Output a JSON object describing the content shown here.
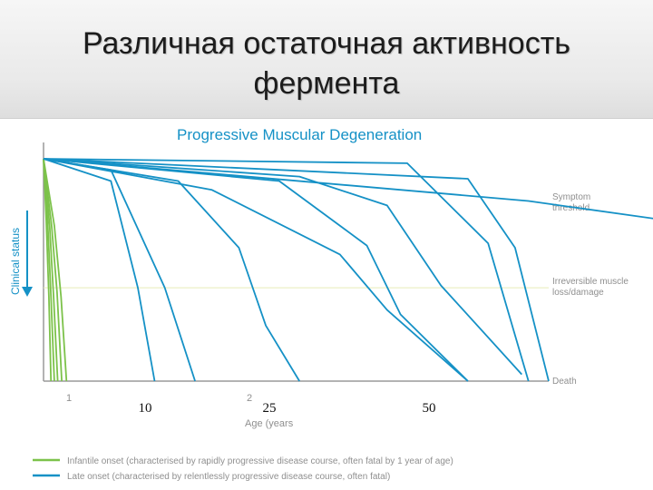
{
  "slide": {
    "title_line1": "Различная остаточная активность",
    "title_line2": "фермента"
  },
  "colors": {
    "late_onset": "#1591c6",
    "infantile_onset": "#7cc24a",
    "axis": "#9a9a9a",
    "chart_title": "#1591c6",
    "annotation": "#8f8f8f",
    "threshold_line": "#e6ecb9"
  },
  "chart_data": {
    "type": "line",
    "title": "Progressive Muscular Degeneration",
    "xlabel": "Age (years",
    "ylabel": "Clinical status",
    "x_tick_labels": [
      {
        "x": 1,
        "label": "1"
      },
      {
        "x": 2,
        "label": "2"
      }
    ],
    "x_overlay_labels": [
      {
        "x": 10,
        "label": "10"
      },
      {
        "x": 25,
        "label": "25"
      },
      {
        "x": 50,
        "label": "50"
      }
    ],
    "xlim": [
      0,
      75
    ],
    "ylim": [
      0,
      100
    ],
    "y_axis_direction": "down (worsening)",
    "grid": false,
    "levels": [
      {
        "label": "Symptom threshold",
        "y": 80
      },
      {
        "label": "Irreversible muscle loss/damage",
        "y": 42
      },
      {
        "label": "Death",
        "y": 0
      }
    ],
    "legend": {
      "placement": "bottom",
      "entries": [
        {
          "label": "Infantile onset (characterised by rapidly progressive disease course, often fatal by 1 year of age)",
          "color": "#7cc24a"
        },
        {
          "label": "Late onset (characterised by relentlessly progressive disease course, often fatal)",
          "color": "#1591c6"
        }
      ]
    },
    "series": [
      {
        "group": "infantile",
        "points": [
          [
            0,
            100
          ],
          [
            0.4,
            72
          ],
          [
            0.8,
            38
          ],
          [
            1.1,
            0
          ]
        ]
      },
      {
        "group": "infantile",
        "points": [
          [
            0,
            100
          ],
          [
            0.6,
            72
          ],
          [
            1.1,
            38
          ],
          [
            1.6,
            0
          ]
        ]
      },
      {
        "group": "infantile",
        "points": [
          [
            0,
            100
          ],
          [
            0.9,
            70
          ],
          [
            1.5,
            38
          ],
          [
            2.1,
            0
          ]
        ]
      },
      {
        "group": "infantile",
        "points": [
          [
            0,
            100
          ],
          [
            1.2,
            70
          ],
          [
            2.0,
            40
          ],
          [
            2.7,
            0
          ]
        ]
      },
      {
        "group": "infantile",
        "points": [
          [
            0,
            100
          ],
          [
            1.6,
            70
          ],
          [
            2.6,
            38
          ],
          [
            3.4,
            0
          ]
        ]
      },
      {
        "group": "late",
        "points": [
          [
            0,
            100
          ],
          [
            10,
            90
          ],
          [
            14,
            42
          ],
          [
            16.5,
            0
          ]
        ]
      },
      {
        "group": "late",
        "points": [
          [
            0,
            100
          ],
          [
            10,
            95
          ],
          [
            18,
            42
          ],
          [
            22.5,
            0
          ]
        ]
      },
      {
        "group": "late",
        "points": [
          [
            0,
            100
          ],
          [
            20,
            90
          ],
          [
            29,
            60
          ],
          [
            33,
            25
          ],
          [
            38,
            0
          ]
        ]
      },
      {
        "group": "late",
        "points": [
          [
            0,
            100
          ],
          [
            25,
            86
          ],
          [
            44,
            57
          ],
          [
            51,
            32
          ],
          [
            63,
            0
          ]
        ]
      },
      {
        "group": "late",
        "points": [
          [
            0,
            100
          ],
          [
            35,
            90
          ],
          [
            48,
            61
          ],
          [
            53,
            30
          ],
          [
            63,
            0
          ]
        ]
      },
      {
        "group": "late",
        "points": [
          [
            0,
            100
          ],
          [
            38,
            92
          ],
          [
            51,
            79
          ],
          [
            59,
            43
          ],
          [
            71,
            3
          ]
        ]
      },
      {
        "group": "late",
        "points": [
          [
            0,
            100
          ],
          [
            54,
            98
          ],
          [
            66,
            62
          ],
          [
            72,
            0
          ]
        ]
      },
      {
        "group": "late",
        "points": [
          [
            0,
            100
          ],
          [
            63,
            91
          ],
          [
            70,
            60
          ],
          [
            75,
            0
          ]
        ]
      },
      {
        "group": "late",
        "points": [
          [
            0,
            100
          ],
          [
            72,
            81
          ],
          [
            112,
            64
          ]
        ]
      }
    ]
  }
}
